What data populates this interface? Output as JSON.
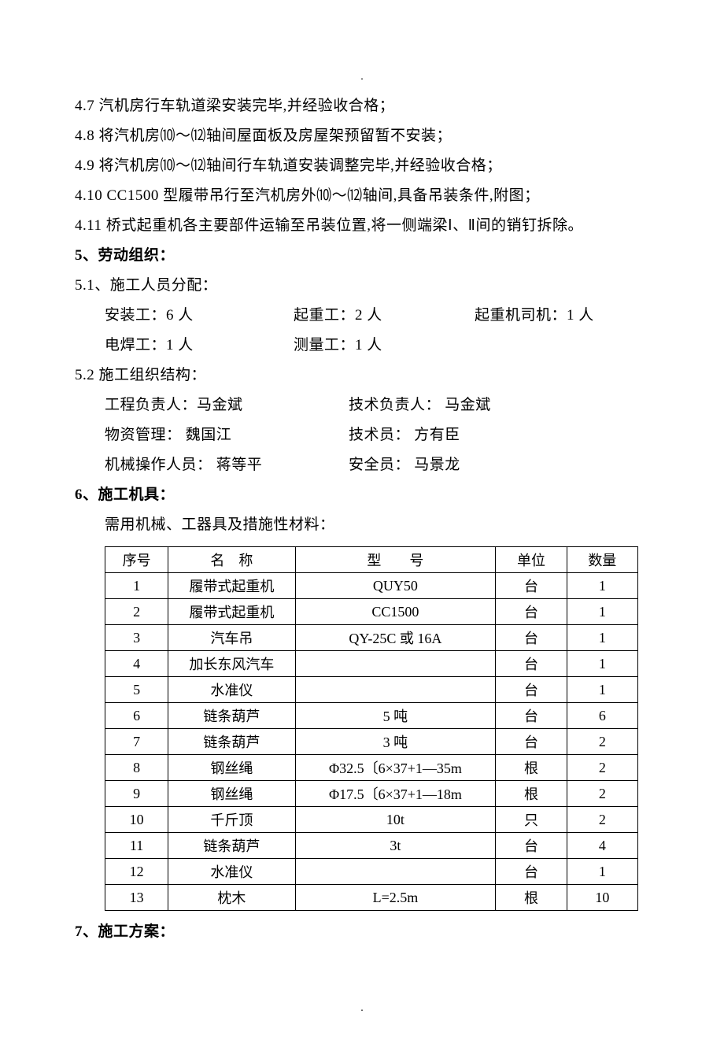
{
  "marker_top": ".",
  "marker_bottom": ".",
  "paragraphs": {
    "p47": "4.7 汽机房行车轨道梁安装完毕,并经验收合格；",
    "p48": "4.8 将汽机房⑽～⑿轴间屋面板及房屋架预留暂不安装；",
    "p49": "4.9 将汽机房⑽～⑿轴间行车轨道安装调整完毕,并经验收合格；",
    "p410": "4.10 CC1500 型履带吊行至汽机房外⑽～⑿轴间,具备吊装条件,附图；",
    "p411": "4.11 桥式起重机各主要部件运输至吊装位置,将一侧端梁Ⅰ、Ⅱ间的销钉拆除。"
  },
  "section5": {
    "heading": "5、劳动组织：",
    "sub51": "5.1、施工人员分配：",
    "roles": {
      "r1c1": "安装工：6 人",
      "r1c2": "起重工：2 人",
      "r1c3": "起重机司机：1 人",
      "r2c1": "电焊工：1 人",
      "r2c2": "测量工：1 人",
      "r2c3": ""
    },
    "sub52": "5.2 施工组织结构：",
    "org": {
      "o1a": "工程负责人：马金斌",
      "o1b": "技术负责人：   马金斌",
      "o2a": "物资管理：   魏国江",
      "o2b": "技术员：      方有臣",
      "o3a": "机械操作人员：   蒋等平",
      "o3b": "安全员：      马景龙"
    }
  },
  "section6": {
    "heading": "6、施工机具：",
    "intro": "需用机械、工器具及措施性材料：",
    "table": {
      "headers": {
        "h1": "序号",
        "h2": "名　称",
        "h3": "型　　号",
        "h4": "单位",
        "h5": "数量"
      },
      "rows": [
        {
          "c1": "1",
          "c2": "履带式起重机",
          "c3": "QUY50",
          "c4": "台",
          "c5": "1"
        },
        {
          "c1": "2",
          "c2": "履带式起重机",
          "c3": "CC1500",
          "c4": "台",
          "c5": "1"
        },
        {
          "c1": "3",
          "c2": "汽车吊",
          "c3": "QY-25C 或 16A",
          "c4": "台",
          "c5": "1"
        },
        {
          "c1": "4",
          "c2": "加长东风汽车",
          "c3": "",
          "c4": "台",
          "c5": "1"
        },
        {
          "c1": "5",
          "c2": "水准仪",
          "c3": "",
          "c4": "台",
          "c5": "1"
        },
        {
          "c1": "6",
          "c2": "链条葫芦",
          "c3": "5 吨",
          "c4": "台",
          "c5": "6"
        },
        {
          "c1": "7",
          "c2": "链条葫芦",
          "c3": "3 吨",
          "c4": "台",
          "c5": "2"
        },
        {
          "c1": "8",
          "c2": "钢丝绳",
          "c3": "Φ32.5〔6×37+1—35m",
          "c4": "根",
          "c5": "2"
        },
        {
          "c1": "9",
          "c2": "钢丝绳",
          "c3": "Φ17.5〔6×37+1—18m",
          "c4": "根",
          "c5": "2"
        },
        {
          "c1": "10",
          "c2": "千斤顶",
          "c3": "10t",
          "c4": "只",
          "c5": "2"
        },
        {
          "c1": "11",
          "c2": "链条葫芦",
          "c3": "3t",
          "c4": "台",
          "c5": "4"
        },
        {
          "c1": "12",
          "c2": "水准仪",
          "c3": "",
          "c4": "台",
          "c5": "1"
        },
        {
          "c1": "13",
          "c2": "枕木",
          "c3": "L=2.5m",
          "c4": "根",
          "c5": "10"
        }
      ]
    }
  },
  "section7": {
    "heading": "7、施工方案："
  },
  "style": {
    "text_color": "#000000",
    "background_color": "#ffffff",
    "border_color": "#000000",
    "body_fontsize": 19,
    "table_fontsize": 18,
    "line_height": 2.0
  }
}
